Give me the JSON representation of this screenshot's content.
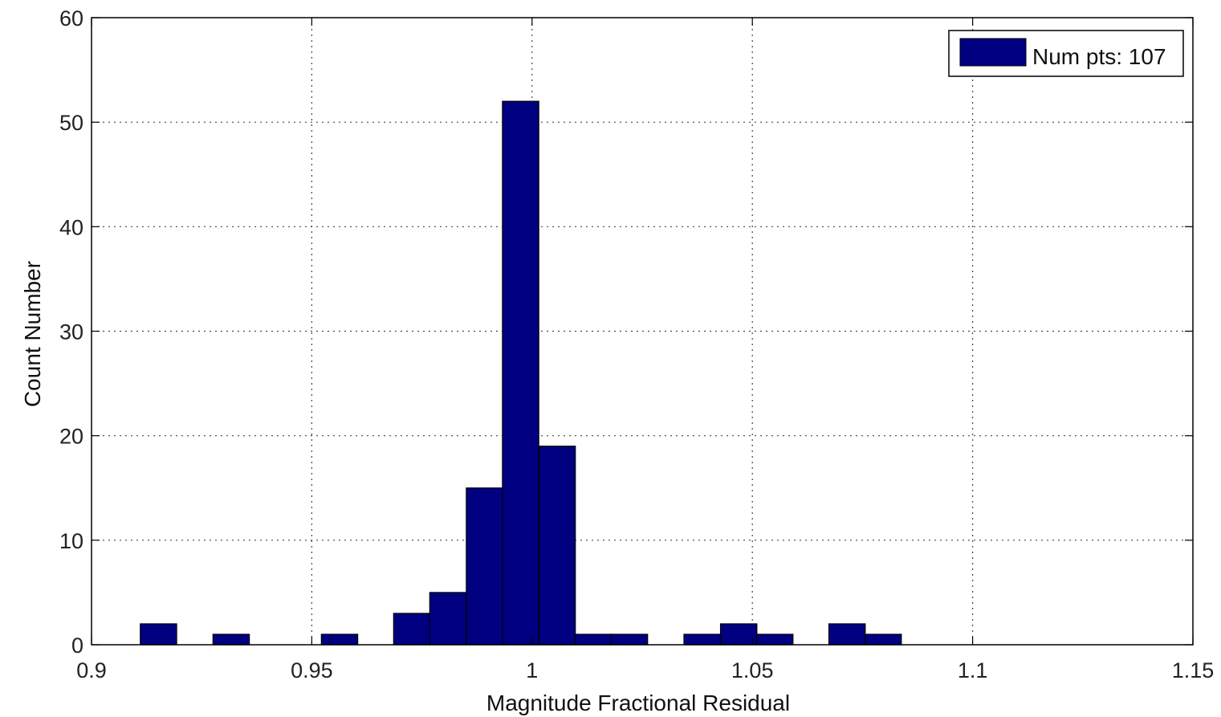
{
  "chart_data": {
    "type": "bar",
    "title": "",
    "xlabel": "Magnitude Fractional Residual",
    "ylabel": "Count Number",
    "xlim": [
      0.9,
      1.15
    ],
    "ylim": [
      0,
      60
    ],
    "xticks": [
      0.9,
      0.95,
      1,
      1.05,
      1.1,
      1.15
    ],
    "xtick_labels": [
      "0.9",
      "0.95",
      "1",
      "1.05",
      "1.1",
      "1.15"
    ],
    "yticks": [
      0,
      10,
      20,
      30,
      40,
      50,
      60
    ],
    "ytick_labels": [
      "0",
      "10",
      "20",
      "30",
      "40",
      "50",
      "60"
    ],
    "grid": true,
    "legend": {
      "position": "top-right",
      "label": "Num pts: 107"
    },
    "bar_color": "#000080",
    "bin_width": 0.00825,
    "bins": [
      {
        "x": 0.9152,
        "count": 2
      },
      {
        "x": 0.9317,
        "count": 1
      },
      {
        "x": 0.9563,
        "count": 1
      },
      {
        "x": 0.9727,
        "count": 3
      },
      {
        "x": 0.9809,
        "count": 5
      },
      {
        "x": 0.9892,
        "count": 15
      },
      {
        "x": 0.9974,
        "count": 52
      },
      {
        "x": 1.0057,
        "count": 19
      },
      {
        "x": 1.0139,
        "count": 1
      },
      {
        "x": 1.0221,
        "count": 1
      },
      {
        "x": 1.0386,
        "count": 1
      },
      {
        "x": 1.0469,
        "count": 2
      },
      {
        "x": 1.0551,
        "count": 1
      },
      {
        "x": 1.0715,
        "count": 2
      },
      {
        "x": 1.0797,
        "count": 1
      }
    ]
  }
}
